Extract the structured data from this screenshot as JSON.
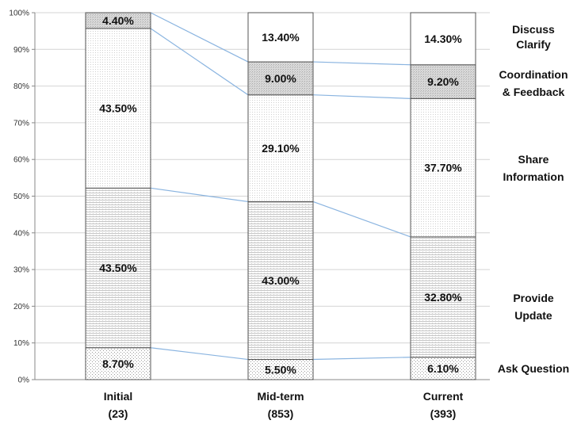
{
  "chart_data": {
    "type": "bar",
    "stacked": true,
    "percent": true,
    "categories": [
      {
        "name": "Initial",
        "count": "(23)"
      },
      {
        "name": "Mid-term",
        "count": "(853)"
      },
      {
        "name": "Current",
        "count": "(393)"
      }
    ],
    "series": [
      {
        "name": "Ask Question",
        "values": [
          8.7,
          5.5,
          6.1
        ],
        "labels": [
          "8.70%",
          "5.50%",
          "6.10%"
        ],
        "pattern": "dots"
      },
      {
        "name": "Provide Update",
        "values": [
          43.5,
          43.0,
          32.8
        ],
        "labels": [
          "43.50%",
          "43.00%",
          "32.80%"
        ],
        "pattern": "hlines"
      },
      {
        "name": "Share Information",
        "values": [
          43.5,
          29.1,
          37.7
        ],
        "labels": [
          "43.50%",
          "29.10%",
          "37.70%"
        ],
        "pattern": "fine"
      },
      {
        "name": "Coordination & Feedback",
        "values": [
          4.4,
          9.0,
          9.2
        ],
        "labels": [
          "4.40%",
          "9.00%",
          "9.20%"
        ],
        "pattern": "grey"
      },
      {
        "name": "Discuss Clarify",
        "values": [
          0,
          13.4,
          14.3
        ],
        "labels": [
          "",
          "13.40%",
          "14.30%"
        ],
        "pattern": "white"
      }
    ],
    "legend_labels": [
      {
        "lines": [
          "Discuss",
          "Clarify"
        ]
      },
      {
        "lines": [
          "Coordination",
          "& Feedback"
        ]
      },
      {
        "lines": [
          "Share",
          "Information"
        ]
      },
      {
        "lines": [
          "Provide",
          "Update"
        ]
      },
      {
        "lines": [
          "Ask Question"
        ]
      }
    ],
    "ylim": [
      0,
      100
    ],
    "yticks": [
      "0%",
      "10%",
      "20%",
      "30%",
      "40%",
      "50%",
      "60%",
      "70%",
      "80%",
      "90%",
      "100%"
    ],
    "grid": true,
    "legend_position": "right",
    "connector_color": "#8ab4e0"
  }
}
